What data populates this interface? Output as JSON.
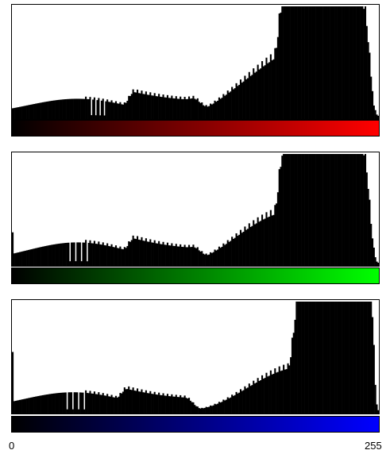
{
  "chart_data": [
    {
      "type": "bar",
      "channel": "red",
      "color": "#ff0000",
      "ramp_from": "#000000",
      "ramp_to": "#ff0000",
      "x_range": [
        0,
        255
      ],
      "grid": false,
      "legend": "none",
      "features": {
        "baseline": 0.03,
        "hump1": {
          "center": 45,
          "width": 35,
          "height": 0.15
        },
        "plateau": {
          "start": 85,
          "end": 125,
          "height": 0.13
        },
        "rise": {
          "start": 118,
          "end": 186,
          "to": 0.42
        },
        "bright": {
          "start": 190,
          "end": 245,
          "height": 0.55
        },
        "bright_peak": {
          "center": 218,
          "width": 22,
          "height": 0.32
        },
        "falloff": {
          "start": 245,
          "end": 255
        },
        "spike_every": 3,
        "spike_gain": 0.12,
        "gaps": [
          55,
          58,
          61,
          64
        ],
        "spikes": [
          {
            "x": 222,
            "y": 1.0
          },
          {
            "x": 252,
            "y": 0.12
          }
        ]
      }
    },
    {
      "type": "bar",
      "channel": "green",
      "color": "#00ff00",
      "ramp_from": "#000000",
      "ramp_to": "#00ff00",
      "x_range": [
        0,
        255
      ],
      "grid": false,
      "legend": "none",
      "features": {
        "baseline": 0.03,
        "hump1": {
          "center": 45,
          "width": 35,
          "height": 0.18
        },
        "plateau": {
          "start": 85,
          "end": 125,
          "height": 0.12
        },
        "rise": {
          "start": 120,
          "end": 186,
          "to": 0.4
        },
        "bright": {
          "start": 190,
          "end": 245,
          "height": 0.6
        },
        "bright_peak": {
          "center": 225,
          "width": 22,
          "height": 0.2
        },
        "falloff": {
          "start": 245,
          "end": 255
        },
        "spike_every": 3,
        "spike_gain": 0.12,
        "gaps": [
          40,
          44,
          48,
          52
        ],
        "spikes": [
          {
            "x": 0,
            "y": 0.3
          },
          {
            "x": 236,
            "y": 1.0
          }
        ]
      }
    },
    {
      "type": "bar",
      "channel": "blue",
      "color": "#0000ff",
      "ramp_from": "#000000",
      "ramp_to": "#0000ff",
      "x_range": [
        0,
        255
      ],
      "grid": false,
      "legend": "none",
      "features": {
        "baseline": 0.03,
        "hump1": {
          "center": 42,
          "width": 35,
          "height": 0.16
        },
        "plateau": {
          "start": 80,
          "end": 120,
          "height": 0.1
        },
        "rise": {
          "start": 125,
          "end": 200,
          "to": 0.38
        },
        "bright": {
          "start": 200,
          "end": 250,
          "height": 0.62
        },
        "bright_peak": {
          "center": 240,
          "width": 16,
          "height": 0.2
        },
        "falloff": {
          "start": 250,
          "end": 255
        },
        "spike_every": 3,
        "spike_gain": 0.12,
        "gaps": [
          38,
          42,
          46,
          50
        ],
        "spikes": [
          {
            "x": 0,
            "y": 0.55
          },
          {
            "x": 243,
            "y": 1.0
          }
        ]
      }
    }
  ],
  "axis": {
    "min_label": "0",
    "max_label": "255"
  }
}
